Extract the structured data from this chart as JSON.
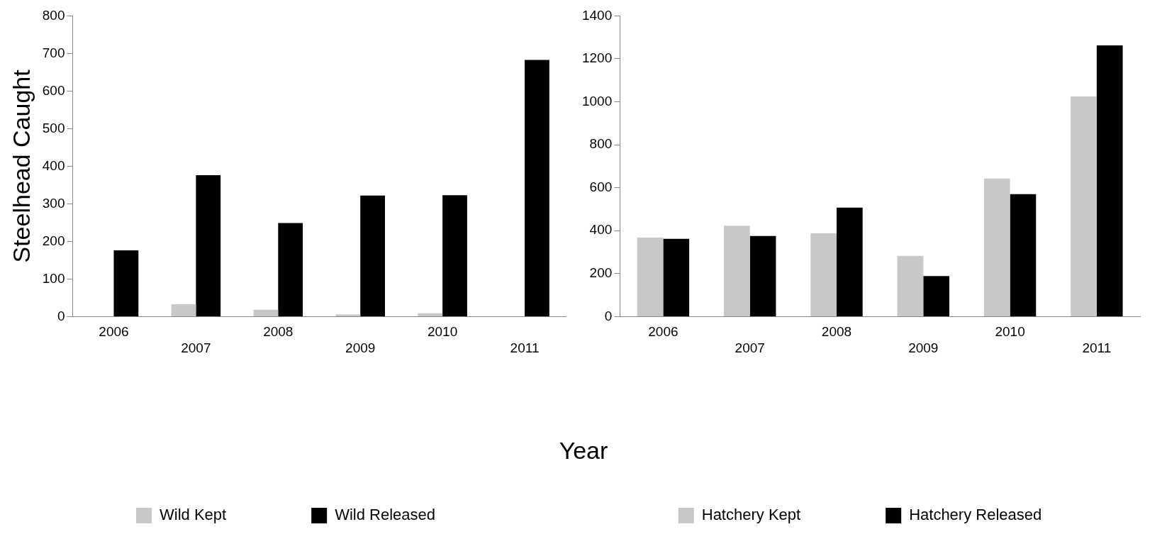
{
  "chart_data": [
    {
      "type": "bar",
      "ylabel": "Steelhead Caught",
      "xlabel": "Year",
      "categories": [
        "2006",
        "2007",
        "2008",
        "2009",
        "2010",
        "2011"
      ],
      "series": [
        {
          "name": "Wild Kept",
          "color": "#c8c8c8",
          "values": [
            0,
            33,
            18,
            6,
            9,
            0
          ]
        },
        {
          "name": "Wild Released",
          "color": "#000000",
          "values": [
            176,
            376,
            249,
            322,
            323,
            683
          ]
        }
      ],
      "ylim": [
        0,
        800
      ],
      "yticks": [
        0,
        100,
        200,
        300,
        400,
        500,
        600,
        700,
        800
      ],
      "grid": false,
      "legend": "bottom"
    },
    {
      "type": "bar",
      "categories": [
        "2006",
        "2007",
        "2008",
        "2009",
        "2010",
        "2011"
      ],
      "series": [
        {
          "name": "Hatchery Kept",
          "color": "#c8c8c8",
          "values": [
            368,
            423,
            388,
            283,
            643,
            1025
          ]
        },
        {
          "name": "Hatchery Released",
          "color": "#000000",
          "values": [
            362,
            375,
            507,
            189,
            570,
            1263
          ]
        }
      ],
      "ylim": [
        0,
        1400
      ],
      "yticks": [
        0,
        200,
        400,
        600,
        800,
        1000,
        1200,
        1400
      ],
      "grid": false,
      "legend": "bottom"
    }
  ]
}
